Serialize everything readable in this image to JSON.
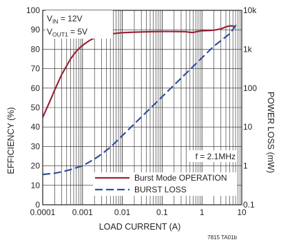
{
  "chart_data": {
    "type": "line",
    "xlabel": "LOAD CURRENT (A)",
    "ylabel": "EFFICIENCY (%)",
    "y2label": "POWER LOSS (mW)",
    "x_scale": "log",
    "xlim": [
      0.0001,
      10
    ],
    "ylim": [
      0,
      100
    ],
    "y2_scale": "log",
    "y2lim": [
      0.1,
      10000
    ],
    "x_ticks": [
      "0.0001",
      "0.001",
      "0.01",
      "0.1",
      "1",
      "10"
    ],
    "y_ticks": [
      "0",
      "10",
      "20",
      "30",
      "40",
      "50",
      "60",
      "70",
      "80",
      "90",
      "100"
    ],
    "y2_ticks": [
      "0.1",
      "1",
      "10",
      "100",
      "1k",
      "10k"
    ],
    "grid": true,
    "legend_position": "bottom-right",
    "conditions": [
      {
        "main": "V",
        "sub": "IN",
        "rest": " = 12V"
      },
      {
        "main": "V",
        "sub": "OUT1",
        "rest": " = 5V"
      }
    ],
    "annotation": "f = 2.1MHz",
    "reference": "7815 TA01b",
    "series": [
      {
        "name": "Burst Mode OPERATION",
        "axis": "left",
        "style": "solid",
        "color": "#9b2335",
        "x": [
          0.0001,
          0.00015,
          0.0002,
          0.0003,
          0.0005,
          0.0007,
          0.001,
          0.0015,
          0.002,
          0.003,
          0.005,
          0.007,
          0.01,
          0.02,
          0.05,
          0.1,
          0.2,
          0.4,
          0.5,
          0.6,
          0.8,
          1,
          1.5,
          2,
          3,
          4,
          5,
          6,
          7
        ],
        "values": [
          45,
          53,
          59,
          67,
          75,
          79,
          82,
          84.5,
          85.8,
          87,
          87.8,
          88.2,
          88.5,
          88.8,
          89,
          89.1,
          89.1,
          89,
          88.7,
          88.6,
          89.2,
          89.5,
          89.6,
          89.8,
          90.5,
          91.5,
          92,
          92,
          91.5
        ]
      },
      {
        "name": "BURST LOSS",
        "axis": "right",
        "style": "dashed",
        "color": "#2e4fa0",
        "x": [
          0.0001,
          0.0002,
          0.0003,
          0.0005,
          0.0007,
          0.001,
          0.002,
          0.003,
          0.005,
          0.01,
          0.02,
          0.05,
          0.1,
          0.2,
          0.5,
          1,
          2,
          5,
          7,
          8
        ],
        "values": [
          0.6,
          0.65,
          0.7,
          0.8,
          0.9,
          1.0,
          1.5,
          2.0,
          3.0,
          6.0,
          12,
          30,
          60,
          120,
          300,
          600,
          1200,
          2500,
          4000,
          5000
        ]
      }
    ]
  }
}
